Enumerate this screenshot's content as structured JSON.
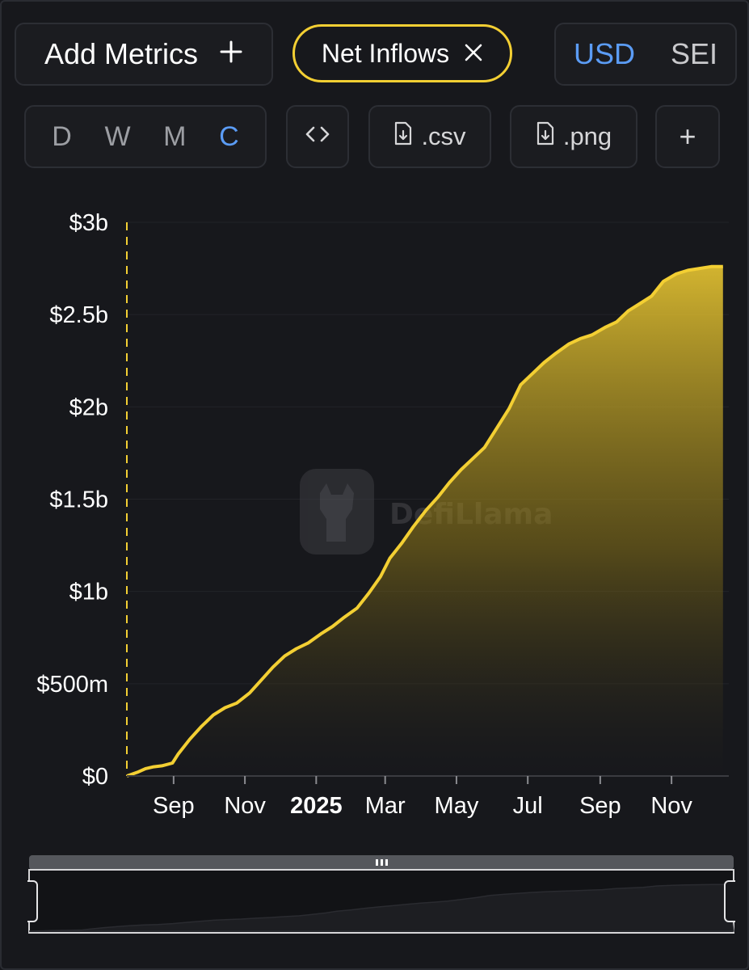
{
  "toolbar": {
    "add_metrics_label": "Add Metrics",
    "add_icon": "plus-icon",
    "metric_chip_label": "Net Inflows",
    "remove_icon": "close-icon",
    "currencies": [
      "USD",
      "SEI"
    ],
    "active_currency": "USD",
    "granularity": [
      "D",
      "W",
      "M",
      "C"
    ],
    "active_granularity": "C",
    "embed_icon": "code-icon",
    "csv_label": ".csv",
    "png_label": ".png",
    "download_icon": "file-download-icon",
    "add_chart_label": "+"
  },
  "watermark": {
    "text": "DefiLlama",
    "icon": "llama-logo-icon"
  },
  "colors": {
    "accent": "#f3cf33",
    "active_blue": "#5b9cf5",
    "background": "#17181c"
  },
  "chart_data": {
    "type": "area",
    "title": "",
    "xlabel": "",
    "ylabel": "",
    "ylim": [
      0,
      3000000000
    ],
    "y_ticks": [
      "$0",
      "$500m",
      "$1b",
      "$1.5b",
      "$2b",
      "$2.5b",
      "$3b"
    ],
    "x_ticks": [
      "Sep",
      "Nov",
      "2025",
      "Mar",
      "May",
      "Jul",
      "Sep",
      "Nov"
    ],
    "x_ticks_bold": [
      false,
      false,
      true,
      false,
      false,
      false,
      false,
      false
    ],
    "grid": true,
    "legend": "none",
    "series": [
      {
        "name": "Net Inflows",
        "x": [
          "2024-07-23",
          "2024-08-01",
          "2024-08-08",
          "2024-08-15",
          "2024-08-22",
          "2024-08-31",
          "2024-09-05",
          "2024-09-15",
          "2024-09-25",
          "2024-10-05",
          "2024-10-15",
          "2024-10-25",
          "2024-11-05",
          "2024-11-15",
          "2024-11-25",
          "2024-12-05",
          "2024-12-15",
          "2024-12-25",
          "2025-01-05",
          "2025-01-15",
          "2025-01-25",
          "2025-02-05",
          "2025-02-15",
          "2025-02-25",
          "2025-03-05",
          "2025-03-15",
          "2025-03-25",
          "2025-04-05",
          "2025-04-15",
          "2025-04-25",
          "2025-05-05",
          "2025-05-15",
          "2025-05-25",
          "2025-06-05",
          "2025-06-15",
          "2025-06-25",
          "2025-07-05",
          "2025-07-15",
          "2025-07-25",
          "2025-08-05",
          "2025-08-15",
          "2025-08-25",
          "2025-09-05",
          "2025-09-15",
          "2025-09-25",
          "2025-10-05",
          "2025-10-15",
          "2025-10-25",
          "2025-11-05",
          "2025-11-15",
          "2025-11-25",
          "2025-12-05",
          "2025-12-15"
        ],
        "values": [
          0,
          20000000,
          40000000,
          50000000,
          55000000,
          70000000,
          120000000,
          200000000,
          270000000,
          330000000,
          370000000,
          395000000,
          450000000,
          520000000,
          590000000,
          650000000,
          690000000,
          720000000,
          770000000,
          810000000,
          860000000,
          910000000,
          990000000,
          1080000000,
          1180000000,
          1260000000,
          1350000000,
          1440000000,
          1510000000,
          1590000000,
          1660000000,
          1720000000,
          1780000000,
          1890000000,
          1990000000,
          2120000000,
          2180000000,
          2240000000,
          2290000000,
          2340000000,
          2370000000,
          2390000000,
          2430000000,
          2460000000,
          2520000000,
          2560000000,
          2600000000,
          2680000000,
          2720000000,
          2740000000,
          2750000000,
          2760000000,
          2760000000
        ]
      }
    ]
  }
}
